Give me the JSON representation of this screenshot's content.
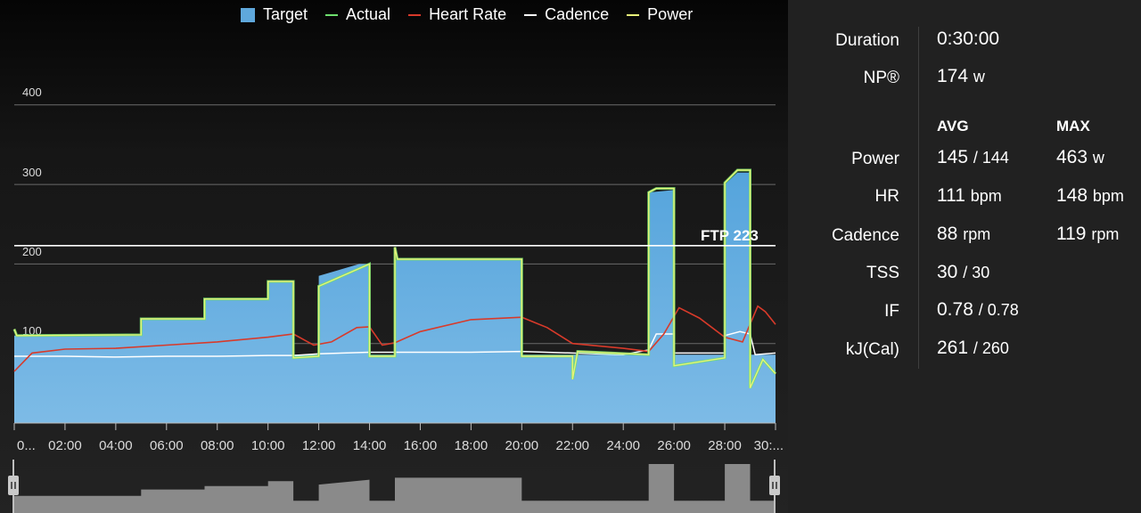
{
  "legend": {
    "target": {
      "label": "Target",
      "color": "#5fa8dc"
    },
    "actual": {
      "label": "Actual",
      "color": "#6ee06e"
    },
    "heart_rate": {
      "label": "Heart Rate",
      "color": "#d83a2a"
    },
    "cadence": {
      "label": "Cadence",
      "color": "#ffffff"
    },
    "power": {
      "label": "Power",
      "color": "#e8f27a"
    }
  },
  "ftp_label": "FTP 223",
  "chart_data": {
    "type": "area",
    "y_ticks": [
      "400",
      "300",
      "200",
      "100"
    ],
    "ylim": [
      0,
      440
    ],
    "xlim": [
      0,
      30
    ],
    "x_tick_labels": [
      "0...",
      "02:00",
      "04:00",
      "06:00",
      "08:00",
      "10:00",
      "12:00",
      "14:00",
      "16:00",
      "18:00",
      "20:00",
      "22:00",
      "24:00",
      "26:00",
      "28:00",
      "30:..."
    ],
    "ftp": 223,
    "series": [
      {
        "name": "Target",
        "type": "area",
        "points": [
          [
            0,
            110
          ],
          [
            5,
            110
          ],
          [
            5,
            130
          ],
          [
            7.5,
            130
          ],
          [
            7.5,
            155
          ],
          [
            10,
            155
          ],
          [
            10,
            177
          ],
          [
            11,
            177
          ],
          [
            11,
            86
          ],
          [
            12,
            86
          ],
          [
            12,
            185
          ],
          [
            13.6,
            200
          ],
          [
            14,
            200
          ],
          [
            14,
            86
          ],
          [
            15,
            86
          ],
          [
            15,
            205
          ],
          [
            20,
            205
          ],
          [
            20,
            86
          ],
          [
            25,
            86
          ],
          [
            25,
            290
          ],
          [
            26,
            293
          ],
          [
            26,
            86
          ],
          [
            28,
            86
          ],
          [
            28,
            300
          ],
          [
            28.5,
            315
          ],
          [
            29,
            315
          ],
          [
            29,
            86
          ],
          [
            30,
            86
          ]
        ]
      },
      {
        "name": "Power",
        "type": "line",
        "points": [
          [
            0,
            118
          ],
          [
            0.1,
            110
          ],
          [
            5,
            111
          ],
          [
            5,
            131
          ],
          [
            7.5,
            131
          ],
          [
            7.5,
            156
          ],
          [
            10,
            156
          ],
          [
            10,
            178
          ],
          [
            11,
            178
          ],
          [
            11,
            82
          ],
          [
            12,
            84
          ],
          [
            12,
            172
          ],
          [
            14,
            200
          ],
          [
            14,
            84
          ],
          [
            15,
            84
          ],
          [
            15,
            221
          ],
          [
            15.1,
            206
          ],
          [
            20,
            206
          ],
          [
            20,
            84
          ],
          [
            22,
            84
          ],
          [
            22,
            55
          ],
          [
            22.2,
            90
          ],
          [
            25,
            86
          ],
          [
            25,
            290
          ],
          [
            25.3,
            295
          ],
          [
            26,
            295
          ],
          [
            26,
            72
          ],
          [
            28,
            82
          ],
          [
            28,
            302
          ],
          [
            28.5,
            318
          ],
          [
            29,
            318
          ],
          [
            29,
            44
          ],
          [
            29.5,
            80
          ],
          [
            30,
            62
          ]
        ]
      },
      {
        "name": "Heart Rate",
        "type": "line",
        "points": [
          [
            0,
            65
          ],
          [
            0.7,
            88
          ],
          [
            2,
            93
          ],
          [
            4,
            94
          ],
          [
            6,
            98
          ],
          [
            8,
            102
          ],
          [
            10,
            108
          ],
          [
            11,
            112
          ],
          [
            11.8,
            98
          ],
          [
            12.5,
            102
          ],
          [
            13.5,
            120
          ],
          [
            14,
            121
          ],
          [
            14.5,
            98
          ],
          [
            15,
            101
          ],
          [
            16,
            115
          ],
          [
            18,
            130
          ],
          [
            20,
            133
          ],
          [
            21,
            120
          ],
          [
            22,
            100
          ],
          [
            24,
            94
          ],
          [
            25,
            90
          ],
          [
            25.6,
            112
          ],
          [
            26.2,
            145
          ],
          [
            27,
            132
          ],
          [
            28,
            108
          ],
          [
            28.7,
            102
          ],
          [
            29.3,
            147
          ],
          [
            29.6,
            140
          ],
          [
            30,
            124
          ]
        ]
      },
      {
        "name": "Cadence",
        "type": "line",
        "points": [
          [
            0,
            84
          ],
          [
            2,
            84
          ],
          [
            4,
            83
          ],
          [
            6,
            84
          ],
          [
            8,
            84
          ],
          [
            10,
            85
          ],
          [
            11,
            85
          ],
          [
            12,
            87
          ],
          [
            14,
            89
          ],
          [
            16,
            89
          ],
          [
            18,
            89
          ],
          [
            20,
            90
          ],
          [
            22,
            88
          ],
          [
            24,
            86
          ],
          [
            25,
            92
          ],
          [
            25.3,
            112
          ],
          [
            26,
            112
          ],
          [
            26,
            88
          ],
          [
            28,
            88
          ],
          [
            28,
            110
          ],
          [
            28.6,
            115
          ],
          [
            29,
            112
          ],
          [
            29.2,
            86
          ],
          [
            30,
            88
          ]
        ]
      }
    ]
  },
  "stats": {
    "duration": {
      "label": "Duration",
      "value": "0:30:00"
    },
    "np": {
      "label": "NP®",
      "value": "174",
      "unit": "w"
    },
    "headers": {
      "avg": "AVG",
      "max": "MAX"
    },
    "rows": [
      {
        "label": "Power",
        "avg": "145",
        "avg_sep": "/ 144",
        "max": "463",
        "max_unit": "w"
      },
      {
        "label": "HR",
        "avg": "111",
        "avg_sep": "bpm",
        "max": "148",
        "max_unit": "bpm"
      },
      {
        "label": "Cadence",
        "avg": "88",
        "avg_sep": "rpm",
        "max": "119",
        "max_unit": "rpm"
      },
      {
        "label": "TSS",
        "avg": "30",
        "avg_sep": "/ 30",
        "max": "",
        "max_unit": ""
      },
      {
        "label": "IF",
        "avg": "0.78",
        "avg_sep": "/ 0.78",
        "max": "",
        "max_unit": ""
      },
      {
        "label": "kJ(Cal)",
        "avg": "261",
        "avg_sep": "/ 260",
        "max": "",
        "max_unit": ""
      }
    ]
  },
  "minimap": {
    "points": [
      [
        0,
        35
      ],
      [
        5,
        35
      ],
      [
        5,
        48
      ],
      [
        7.5,
        48
      ],
      [
        7.5,
        55
      ],
      [
        10,
        55
      ],
      [
        10,
        65
      ],
      [
        11,
        65
      ],
      [
        11,
        25
      ],
      [
        12,
        25
      ],
      [
        12,
        58
      ],
      [
        14,
        68
      ],
      [
        14,
        25
      ],
      [
        15,
        25
      ],
      [
        15,
        72
      ],
      [
        20,
        72
      ],
      [
        20,
        25
      ],
      [
        25,
        25
      ],
      [
        25,
        100
      ],
      [
        26,
        100
      ],
      [
        26,
        25
      ],
      [
        28,
        25
      ],
      [
        28,
        100
      ],
      [
        29,
        100
      ],
      [
        29,
        25
      ],
      [
        30,
        25
      ]
    ]
  }
}
